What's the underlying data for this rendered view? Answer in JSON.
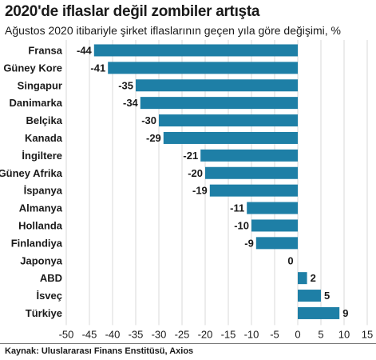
{
  "title": "2020'de iflaslar değil zombiler artışta",
  "subtitle": "Ağustos 2020 itibariyle şirket iflaslarının geçen yıla göre değişimi, %",
  "source": "Kaynak: Uluslararası Finans Enstitüsü, Axios",
  "chart_data": {
    "type": "bar",
    "orientation": "horizontal",
    "title": "2020'de iflaslar değil zombiler artışta",
    "subtitle": "Ağustos 2020 itibariyle şirket iflaslarının geçen yıla göre değişimi, %",
    "categories": [
      "Fransa",
      "Güney Kore",
      "Singapur",
      "Danimarka",
      "Belçika",
      "Kanada",
      "İngiltere",
      "Güney Afrika",
      "İspanya",
      "Almanya",
      "Hollanda",
      "Finlandiya",
      "Japonya",
      "ABD",
      "İsveç",
      "Türkiye"
    ],
    "values": [
      -44,
      -41,
      -35,
      -34,
      -30,
      -29,
      -21,
      -20,
      -19,
      -11,
      -10,
      -9,
      0,
      2,
      5,
      9
    ],
    "xlim": [
      -50,
      15
    ],
    "xticks": [
      -50,
      -45,
      -40,
      -35,
      -30,
      -25,
      -20,
      -15,
      -10,
      -5,
      0,
      5,
      10,
      15
    ],
    "grid": true,
    "bar_color": "#1e7fa6"
  }
}
